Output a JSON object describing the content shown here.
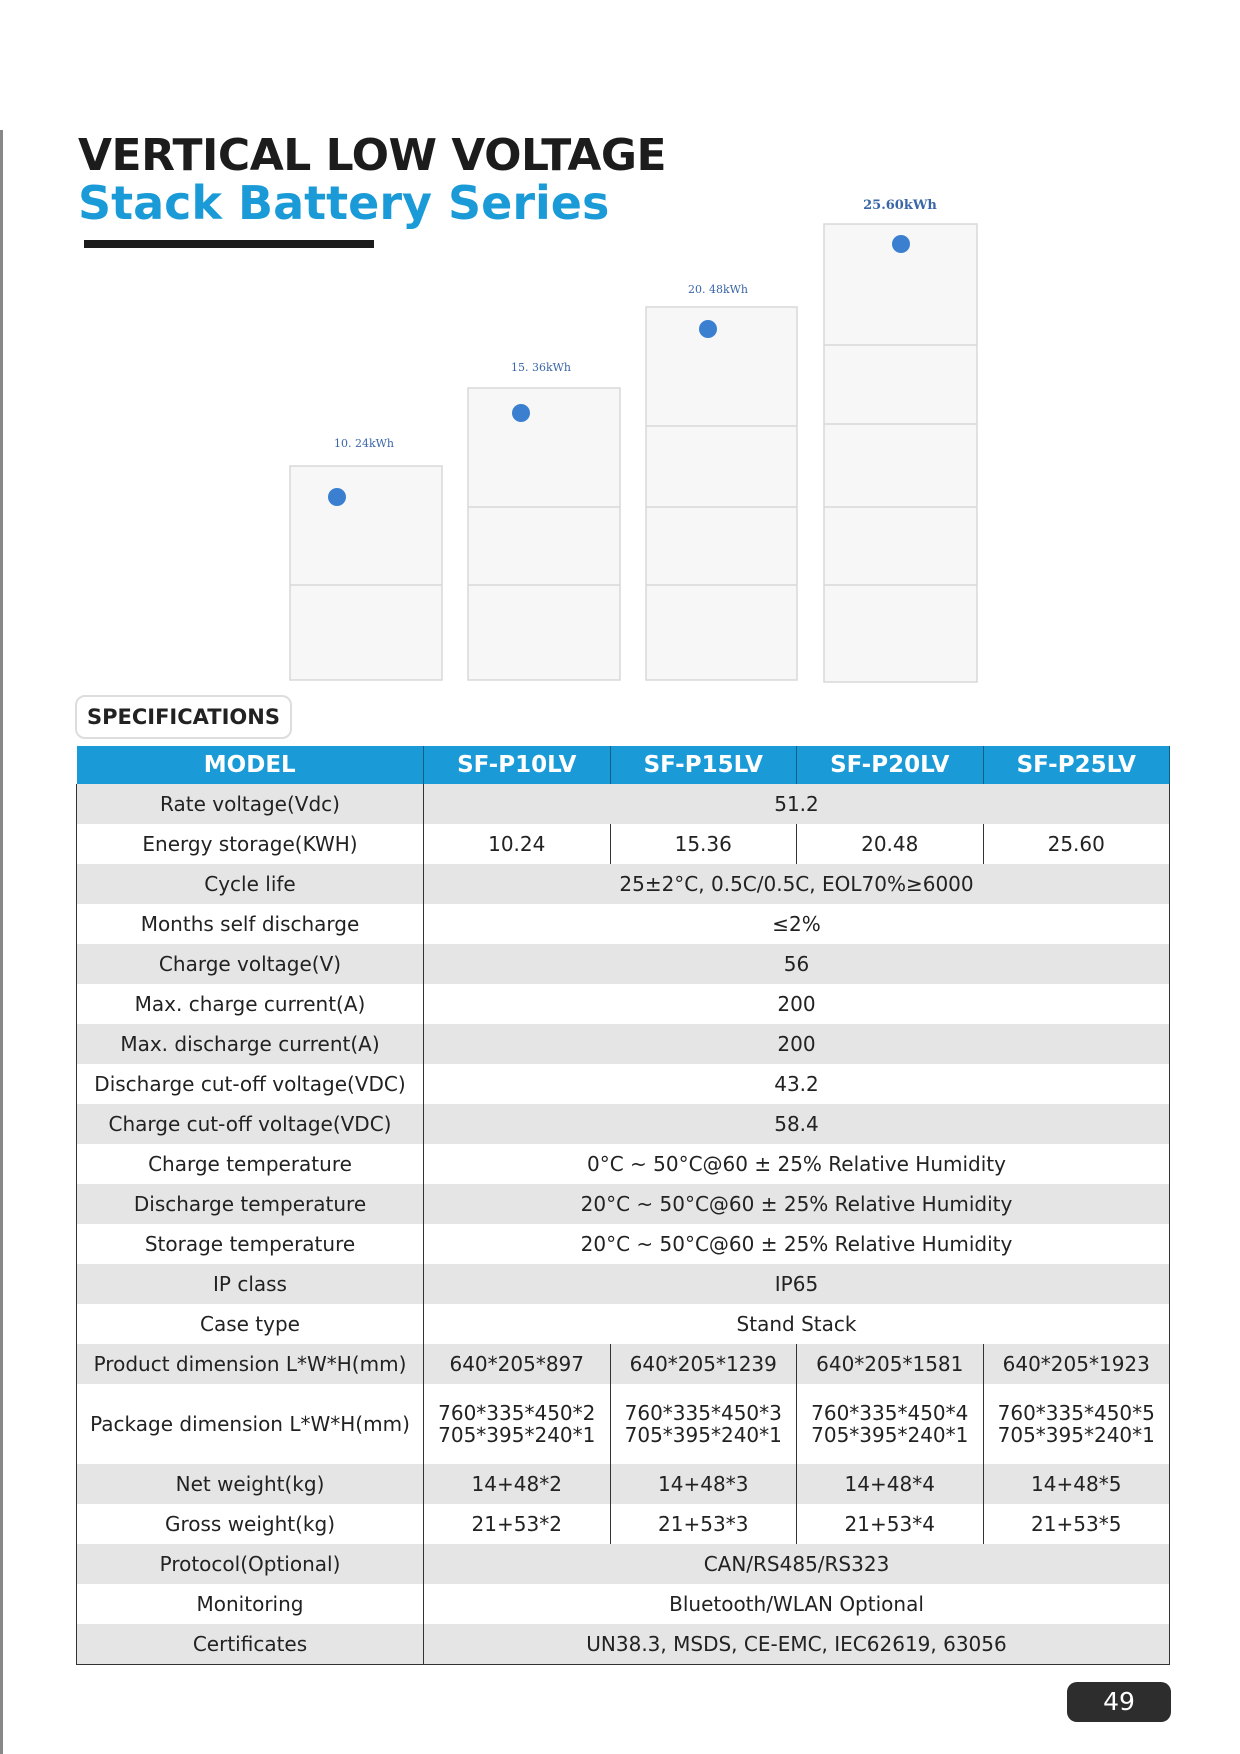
{
  "header": {
    "title_line1": "VERTICAL LOW VOLTAGE",
    "title_line2": "Stack Battery Series"
  },
  "products": [
    {
      "capacity": "10. 24kWh"
    },
    {
      "capacity": "15. 36kWh"
    },
    {
      "capacity": "20. 48kWh"
    },
    {
      "capacity": "25.60kWh"
    }
  ],
  "section_label": "SPECIFICATIONS",
  "table": {
    "header": [
      "MODEL",
      "SF-P10LV",
      "SF-P15LV",
      "SF-P20LV",
      "SF-P25LV"
    ],
    "rows": [
      {
        "label": "Rate voltage(Vdc)",
        "values": [
          "51.2"
        ]
      },
      {
        "label": "Energy storage(KWH)",
        "values": [
          "10.24",
          "15.36",
          "20.48",
          "25.60"
        ]
      },
      {
        "label": "Cycle life",
        "values": [
          "25±2°C, 0.5C/0.5C, EOL70%≥6000"
        ]
      },
      {
        "label": "Months self discharge",
        "values": [
          "≤2%"
        ]
      },
      {
        "label": "Charge voltage(V)",
        "values": [
          "56"
        ]
      },
      {
        "label": "Max. charge current(A)",
        "values": [
          "200"
        ]
      },
      {
        "label": "Max. discharge current(A)",
        "values": [
          "200"
        ]
      },
      {
        "label": "Discharge cut-off voltage(VDC)",
        "values": [
          "43.2"
        ]
      },
      {
        "label": "Charge cut-off voltage(VDC)",
        "values": [
          "58.4"
        ]
      },
      {
        "label": "Charge temperature",
        "values": [
          "0°C ~ 50°C@60 ± 25% Relative Humidity"
        ]
      },
      {
        "label": "Discharge temperature",
        "values": [
          "20°C ~ 50°C@60 ± 25% Relative Humidity"
        ]
      },
      {
        "label": "Storage temperature",
        "values": [
          "20°C ~ 50°C@60 ± 25% Relative Humidity"
        ]
      },
      {
        "label": "IP class",
        "values": [
          "IP65"
        ]
      },
      {
        "label": "Case type",
        "values": [
          "Stand Stack"
        ]
      },
      {
        "label": "Product dimension L*W*H(mm)",
        "values": [
          "640*205*897",
          "640*205*1239",
          "640*205*1581",
          "640*205*1923"
        ]
      },
      {
        "label": "Package dimension L*W*H(mm)",
        "values": [
          [
            "760*335*450*2",
            "705*395*240*1"
          ],
          [
            "760*335*450*3",
            "705*395*240*1"
          ],
          [
            "760*335*450*4",
            "705*395*240*1"
          ],
          [
            "760*335*450*5",
            "705*395*240*1"
          ]
        ]
      },
      {
        "label": "Net weight(kg)",
        "values": [
          "14+48*2",
          "14+48*3",
          "14+48*4",
          "14+48*5"
        ]
      },
      {
        "label": "Gross weight(kg)",
        "values": [
          "21+53*2",
          "21+53*3",
          "21+53*4",
          "21+53*5"
        ]
      },
      {
        "label": "Protocol(Optional)",
        "values": [
          "CAN/RS485/RS323"
        ]
      },
      {
        "label": "Monitoring",
        "values": [
          "Bluetooth/WLAN Optional"
        ]
      },
      {
        "label": "Certificates",
        "values": [
          "UN38.3, MSDS, CE-EMC, IEC62619, 63056"
        ]
      }
    ]
  },
  "page_number": "49"
}
